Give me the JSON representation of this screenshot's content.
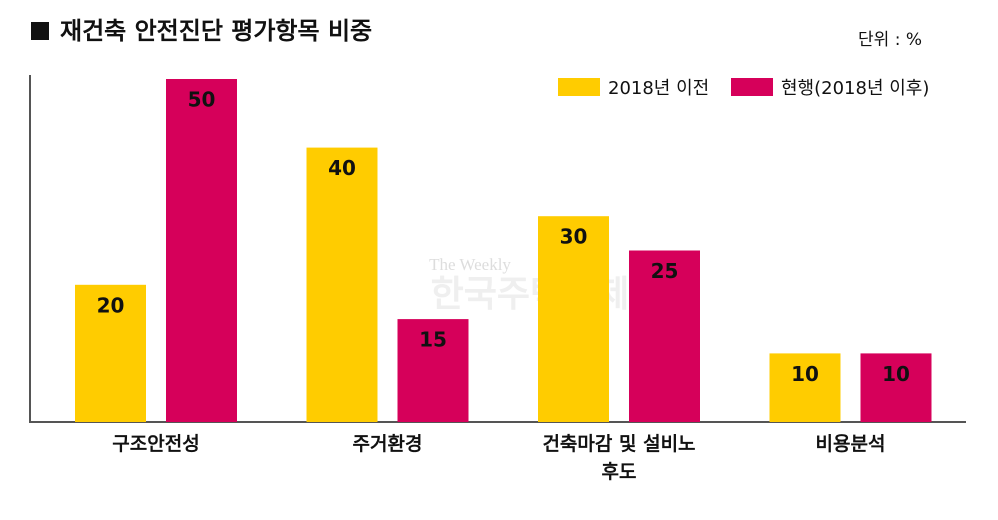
{
  "chart_data": {
    "type": "bar",
    "title": "재건축 안전진단 평가항목 비중",
    "unit_label": "단위 : %",
    "watermark": [
      "The Weekly",
      "한국주택경제"
    ],
    "categories": [
      "구조안전성",
      "주거환경",
      "건축마감 및 설비노후도",
      "비용분석"
    ],
    "series": [
      {
        "name": "2018년 이전",
        "color": "#FFCC00",
        "values": [
          20,
          40,
          30,
          10
        ]
      },
      {
        "name": "현행(2018년 이후)",
        "color": "#D6005A",
        "values": [
          50,
          15,
          25,
          10
        ]
      }
    ],
    "ylim": [
      0,
      50
    ],
    "legend": "top-right"
  }
}
